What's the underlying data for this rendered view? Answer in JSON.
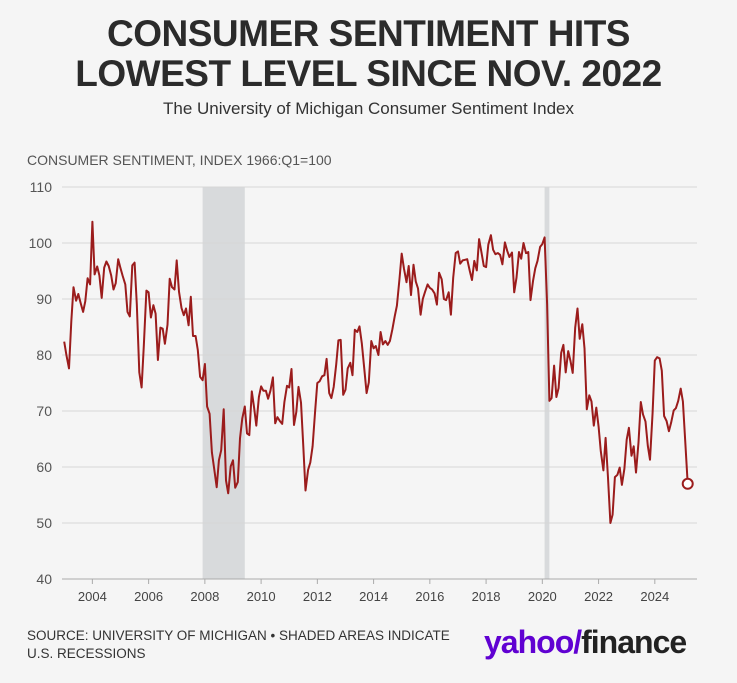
{
  "header": {
    "title_line1": "CONSUMER SENTIMENT HITS",
    "title_line2": "LOWEST LEVEL SINCE NOV. 2022",
    "subtitle": "The University of Michigan Consumer Sentiment Index"
  },
  "footer": {
    "source_line1": "SOURCE: UNIVERSITY OF MICHIGAN • SHADED AREAS INDICATE",
    "source_line2": "U.S. RECESSIONS",
    "logo_yahoo": "yahoo",
    "logo_slash": "/",
    "logo_finance": "finance"
  },
  "colors": {
    "line": "#9b1c1c",
    "recession": "#d8dadc",
    "grid": "#d6d6d6",
    "yahoo": "#6001d2"
  },
  "chart_data": {
    "type": "line",
    "ylabel": "CONSUMER SENTIMENT, INDEX 1966:Q1=100",
    "ylim": [
      40,
      110
    ],
    "xlim": [
      2002.92,
      2025.5
    ],
    "yticks": [
      40,
      50,
      60,
      70,
      80,
      90,
      100,
      110
    ],
    "xticks": [
      2004,
      2006,
      2008,
      2010,
      2012,
      2014,
      2016,
      2018,
      2020,
      2022,
      2024
    ],
    "grid": "horizontal",
    "recessions": [
      [
        2007.92,
        2009.42
      ],
      [
        2020.08,
        2020.25
      ]
    ],
    "series": [
      {
        "points": [
          [
            2003.0,
            82.4
          ],
          [
            2003.08,
            79.9
          ],
          [
            2003.17,
            77.6
          ],
          [
            2003.25,
            86.0
          ],
          [
            2003.33,
            92.1
          ],
          [
            2003.42,
            89.7
          ],
          [
            2003.5,
            90.9
          ],
          [
            2003.58,
            89.3
          ],
          [
            2003.67,
            87.7
          ],
          [
            2003.75,
            89.6
          ],
          [
            2003.83,
            93.7
          ],
          [
            2003.92,
            92.6
          ],
          [
            2004.0,
            103.8
          ],
          [
            2004.08,
            94.4
          ],
          [
            2004.17,
            95.8
          ],
          [
            2004.25,
            94.2
          ],
          [
            2004.33,
            90.2
          ],
          [
            2004.42,
            95.6
          ],
          [
            2004.5,
            96.7
          ],
          [
            2004.58,
            95.9
          ],
          [
            2004.67,
            94.2
          ],
          [
            2004.75,
            91.7
          ],
          [
            2004.83,
            92.8
          ],
          [
            2004.92,
            97.1
          ],
          [
            2005.0,
            95.5
          ],
          [
            2005.08,
            94.1
          ],
          [
            2005.17,
            92.6
          ],
          [
            2005.25,
            87.7
          ],
          [
            2005.33,
            86.9
          ],
          [
            2005.42,
            96.0
          ],
          [
            2005.5,
            96.5
          ],
          [
            2005.58,
            89.1
          ],
          [
            2005.67,
            76.9
          ],
          [
            2005.75,
            74.2
          ],
          [
            2005.83,
            81.6
          ],
          [
            2005.92,
            91.5
          ],
          [
            2006.0,
            91.2
          ],
          [
            2006.08,
            86.7
          ],
          [
            2006.17,
            88.9
          ],
          [
            2006.25,
            87.4
          ],
          [
            2006.33,
            79.1
          ],
          [
            2006.42,
            84.9
          ],
          [
            2006.5,
            84.7
          ],
          [
            2006.58,
            82.0
          ],
          [
            2006.67,
            85.4
          ],
          [
            2006.75,
            93.6
          ],
          [
            2006.83,
            92.1
          ],
          [
            2006.92,
            91.7
          ],
          [
            2007.0,
            96.9
          ],
          [
            2007.08,
            91.3
          ],
          [
            2007.17,
            88.4
          ],
          [
            2007.25,
            87.1
          ],
          [
            2007.33,
            88.3
          ],
          [
            2007.42,
            85.3
          ],
          [
            2007.5,
            90.4
          ],
          [
            2007.58,
            83.4
          ],
          [
            2007.67,
            83.4
          ],
          [
            2007.75,
            80.9
          ],
          [
            2007.83,
            76.1
          ],
          [
            2007.92,
            75.5
          ],
          [
            2008.0,
            78.4
          ],
          [
            2008.08,
            70.8
          ],
          [
            2008.17,
            69.5
          ],
          [
            2008.25,
            62.6
          ],
          [
            2008.33,
            59.8
          ],
          [
            2008.42,
            56.4
          ],
          [
            2008.5,
            61.2
          ],
          [
            2008.58,
            63.0
          ],
          [
            2008.67,
            70.3
          ],
          [
            2008.75,
            57.6
          ],
          [
            2008.83,
            55.3
          ],
          [
            2008.92,
            60.1
          ],
          [
            2009.0,
            61.2
          ],
          [
            2009.08,
            56.3
          ],
          [
            2009.17,
            57.3
          ],
          [
            2009.25,
            65.1
          ],
          [
            2009.33,
            68.7
          ],
          [
            2009.42,
            70.8
          ],
          [
            2009.5,
            66.0
          ],
          [
            2009.58,
            65.7
          ],
          [
            2009.67,
            73.5
          ],
          [
            2009.75,
            70.6
          ],
          [
            2009.83,
            67.4
          ],
          [
            2009.92,
            72.5
          ],
          [
            2010.0,
            74.4
          ],
          [
            2010.08,
            73.6
          ],
          [
            2010.17,
            73.6
          ],
          [
            2010.25,
            72.2
          ],
          [
            2010.33,
            73.6
          ],
          [
            2010.42,
            76.0
          ],
          [
            2010.5,
            67.8
          ],
          [
            2010.58,
            68.9
          ],
          [
            2010.67,
            68.2
          ],
          [
            2010.75,
            67.7
          ],
          [
            2010.83,
            71.6
          ],
          [
            2010.92,
            74.5
          ],
          [
            2011.0,
            74.2
          ],
          [
            2011.08,
            77.5
          ],
          [
            2011.17,
            67.5
          ],
          [
            2011.25,
            69.8
          ],
          [
            2011.33,
            74.3
          ],
          [
            2011.42,
            71.5
          ],
          [
            2011.5,
            63.7
          ],
          [
            2011.58,
            55.8
          ],
          [
            2011.67,
            59.5
          ],
          [
            2011.75,
            60.8
          ],
          [
            2011.83,
            63.7
          ],
          [
            2011.92,
            69.9
          ],
          [
            2012.0,
            75.0
          ],
          [
            2012.08,
            75.3
          ],
          [
            2012.17,
            76.2
          ],
          [
            2012.25,
            76.4
          ],
          [
            2012.33,
            79.3
          ],
          [
            2012.42,
            73.2
          ],
          [
            2012.5,
            72.3
          ],
          [
            2012.58,
            74.3
          ],
          [
            2012.67,
            78.3
          ],
          [
            2012.75,
            82.6
          ],
          [
            2012.83,
            82.7
          ],
          [
            2012.92,
            72.9
          ],
          [
            2013.0,
            73.8
          ],
          [
            2013.08,
            77.6
          ],
          [
            2013.17,
            78.6
          ],
          [
            2013.25,
            76.4
          ],
          [
            2013.33,
            84.5
          ],
          [
            2013.42,
            84.1
          ],
          [
            2013.5,
            85.1
          ],
          [
            2013.58,
            82.1
          ],
          [
            2013.67,
            77.5
          ],
          [
            2013.75,
            73.2
          ],
          [
            2013.83,
            75.1
          ],
          [
            2013.92,
            82.5
          ],
          [
            2014.0,
            81.2
          ],
          [
            2014.08,
            81.6
          ],
          [
            2014.17,
            80.0
          ],
          [
            2014.25,
            84.1
          ],
          [
            2014.33,
            81.9
          ],
          [
            2014.42,
            82.5
          ],
          [
            2014.5,
            81.8
          ],
          [
            2014.58,
            82.5
          ],
          [
            2014.67,
            84.6
          ],
          [
            2014.75,
            86.9
          ],
          [
            2014.83,
            88.8
          ],
          [
            2014.92,
            93.6
          ],
          [
            2015.0,
            98.1
          ],
          [
            2015.08,
            95.4
          ],
          [
            2015.17,
            93.0
          ],
          [
            2015.25,
            95.9
          ],
          [
            2015.33,
            90.7
          ],
          [
            2015.42,
            96.1
          ],
          [
            2015.5,
            93.1
          ],
          [
            2015.58,
            91.9
          ],
          [
            2015.67,
            87.2
          ],
          [
            2015.75,
            90.0
          ],
          [
            2015.83,
            91.3
          ],
          [
            2015.92,
            92.6
          ],
          [
            2016.0,
            92.0
          ],
          [
            2016.08,
            91.7
          ],
          [
            2016.17,
            91.0
          ],
          [
            2016.25,
            89.0
          ],
          [
            2016.33,
            94.7
          ],
          [
            2016.42,
            93.5
          ],
          [
            2016.5,
            90.0
          ],
          [
            2016.58,
            89.8
          ],
          [
            2016.67,
            91.2
          ],
          [
            2016.75,
            87.2
          ],
          [
            2016.83,
            93.8
          ],
          [
            2016.92,
            98.2
          ],
          [
            2017.0,
            98.5
          ],
          [
            2017.08,
            96.3
          ],
          [
            2017.17,
            96.9
          ],
          [
            2017.25,
            97.0
          ],
          [
            2017.33,
            97.1
          ],
          [
            2017.42,
            95.0
          ],
          [
            2017.5,
            93.4
          ],
          [
            2017.58,
            96.8
          ],
          [
            2017.67,
            95.1
          ],
          [
            2017.75,
            100.7
          ],
          [
            2017.83,
            98.5
          ],
          [
            2017.92,
            95.9
          ],
          [
            2018.0,
            95.7
          ],
          [
            2018.08,
            99.7
          ],
          [
            2018.17,
            101.4
          ],
          [
            2018.25,
            98.8
          ],
          [
            2018.33,
            98.0
          ],
          [
            2018.42,
            98.2
          ],
          [
            2018.5,
            97.9
          ],
          [
            2018.58,
            96.2
          ],
          [
            2018.67,
            100.1
          ],
          [
            2018.75,
            98.6
          ],
          [
            2018.83,
            97.5
          ],
          [
            2018.92,
            98.3
          ],
          [
            2019.0,
            91.2
          ],
          [
            2019.08,
            93.8
          ],
          [
            2019.17,
            98.4
          ],
          [
            2019.25,
            97.2
          ],
          [
            2019.33,
            100.0
          ],
          [
            2019.42,
            98.2
          ],
          [
            2019.5,
            98.4
          ],
          [
            2019.58,
            89.8
          ],
          [
            2019.67,
            93.2
          ],
          [
            2019.75,
            95.5
          ],
          [
            2019.83,
            96.8
          ],
          [
            2019.92,
            99.3
          ],
          [
            2020.0,
            99.8
          ],
          [
            2020.08,
            101.0
          ],
          [
            2020.17,
            89.1
          ],
          [
            2020.25,
            71.8
          ],
          [
            2020.33,
            72.3
          ],
          [
            2020.42,
            78.1
          ],
          [
            2020.5,
            72.5
          ],
          [
            2020.58,
            74.1
          ],
          [
            2020.67,
            80.4
          ],
          [
            2020.75,
            81.8
          ],
          [
            2020.83,
            76.9
          ],
          [
            2020.92,
            80.7
          ],
          [
            2021.0,
            79.0
          ],
          [
            2021.08,
            76.8
          ],
          [
            2021.17,
            84.9
          ],
          [
            2021.25,
            88.3
          ],
          [
            2021.33,
            82.9
          ],
          [
            2021.42,
            85.5
          ],
          [
            2021.5,
            81.2
          ],
          [
            2021.58,
            70.3
          ],
          [
            2021.67,
            72.8
          ],
          [
            2021.75,
            71.7
          ],
          [
            2021.83,
            67.4
          ],
          [
            2021.92,
            70.6
          ],
          [
            2022.0,
            67.2
          ],
          [
            2022.08,
            62.8
          ],
          [
            2022.17,
            59.4
          ],
          [
            2022.25,
            65.2
          ],
          [
            2022.33,
            58.4
          ],
          [
            2022.42,
            50.0
          ],
          [
            2022.5,
            51.5
          ],
          [
            2022.58,
            58.2
          ],
          [
            2022.67,
            58.6
          ],
          [
            2022.75,
            59.9
          ],
          [
            2022.83,
            56.8
          ],
          [
            2022.92,
            59.7
          ],
          [
            2023.0,
            64.9
          ],
          [
            2023.08,
            67.0
          ],
          [
            2023.17,
            62.0
          ],
          [
            2023.25,
            63.7
          ],
          [
            2023.33,
            59.0
          ],
          [
            2023.42,
            64.4
          ],
          [
            2023.5,
            71.6
          ],
          [
            2023.58,
            69.4
          ],
          [
            2023.67,
            68.1
          ],
          [
            2023.75,
            63.8
          ],
          [
            2023.83,
            61.3
          ],
          [
            2023.92,
            69.7
          ],
          [
            2024.0,
            79.0
          ],
          [
            2024.08,
            79.6
          ],
          [
            2024.17,
            79.4
          ],
          [
            2024.25,
            77.2
          ],
          [
            2024.33,
            69.1
          ],
          [
            2024.42,
            68.2
          ],
          [
            2024.5,
            66.4
          ],
          [
            2024.58,
            67.9
          ],
          [
            2024.67,
            70.1
          ],
          [
            2024.75,
            70.5
          ],
          [
            2024.83,
            71.8
          ],
          [
            2024.92,
            74.0
          ],
          [
            2025.0,
            71.7
          ],
          [
            2025.08,
            64.7
          ],
          [
            2025.17,
            57.0
          ]
        ]
      }
    ]
  }
}
